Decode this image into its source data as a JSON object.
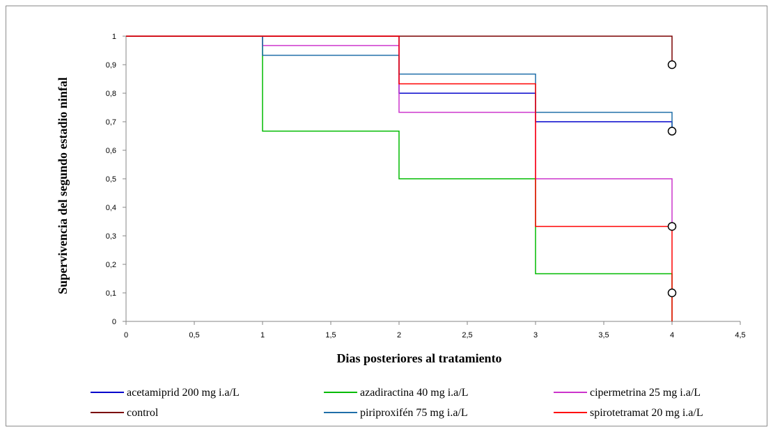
{
  "chart_data": {
    "type": "line",
    "step": true,
    "title": "",
    "xlabel": "Dias posteriores al tratamiento",
    "ylabel": "Supervivencia del  segundo estadio ninfal",
    "xlim": [
      0,
      4.5
    ],
    "ylim": [
      0,
      1
    ],
    "x_ticks": [
      "0",
      "0,5",
      "1",
      "1,5",
      "2",
      "2,5",
      "3",
      "3,5",
      "4",
      "4,5"
    ],
    "x_tick_values": [
      0,
      0.5,
      1,
      1.5,
      2,
      2.5,
      3,
      3.5,
      4,
      4.5
    ],
    "y_ticks": [
      "0",
      "0,1",
      "0,2",
      "0,3",
      "0,4",
      "0,5",
      "0,6",
      "0,7",
      "0,8",
      "0,9",
      "1"
    ],
    "y_tick_values": [
      0,
      0.1,
      0.2,
      0.3,
      0.4,
      0.5,
      0.6,
      0.7,
      0.8,
      0.9,
      1
    ],
    "grid": false,
    "legend_position": "bottom",
    "series": [
      {
        "name": "acetamiprid  200 mg i.a/L",
        "color": "#0000cc",
        "x": [
          0,
          1,
          2,
          3,
          4
        ],
        "y": [
          1,
          1,
          0.8,
          0.7,
          0.7
        ]
      },
      {
        "name": "azadiractina  40 mg i.a/L",
        "color": "#00bb00",
        "x": [
          0,
          1,
          2,
          3,
          4
        ],
        "y": [
          1,
          0.667,
          0.5,
          0.167,
          0.167
        ]
      },
      {
        "name": "cipermetrina  25 mg i.a/L",
        "color": "#cc33cc",
        "x": [
          0,
          1,
          2,
          3,
          4
        ],
        "y": [
          1,
          0.967,
          0.733,
          0.5,
          0.5
        ]
      },
      {
        "name": "control",
        "color": "#7a0000",
        "x": [
          0,
          4
        ],
        "y": [
          1,
          1
        ]
      },
      {
        "name": "piriproxifén  75 mg  i.a/L",
        "color": "#1f6ea8",
        "x": [
          0,
          1,
          2,
          3,
          4
        ],
        "y": [
          1,
          0.933,
          0.867,
          0.733,
          0.733
        ]
      },
      {
        "name": "spirotetramat  20 mg i.a/L",
        "color": "#ff0000",
        "x": [
          0,
          2,
          3,
          4
        ],
        "y": [
          1,
          0.833,
          0.333,
          0.333
        ]
      }
    ],
    "end_drops": [
      {
        "series": 0,
        "x": 4,
        "from": 0.7,
        "to": 0.667
      },
      {
        "series": 1,
        "x": 4,
        "from": 0.167,
        "to": 0
      },
      {
        "series": 2,
        "x": 4,
        "from": 0.5,
        "to": 0.333
      },
      {
        "series": 3,
        "x": 4,
        "from": 1,
        "to": 0.9
      },
      {
        "series": 4,
        "x": 4,
        "from": 0.733,
        "to": 0.667
      },
      {
        "series": 5,
        "x": 4,
        "from": 0.333,
        "to": 0
      }
    ],
    "censor_markers": [
      {
        "x": 4,
        "y": 0.9
      },
      {
        "x": 4,
        "y": 0.667
      },
      {
        "x": 4,
        "y": 0.333
      },
      {
        "x": 4,
        "y": 0.1
      }
    ]
  }
}
